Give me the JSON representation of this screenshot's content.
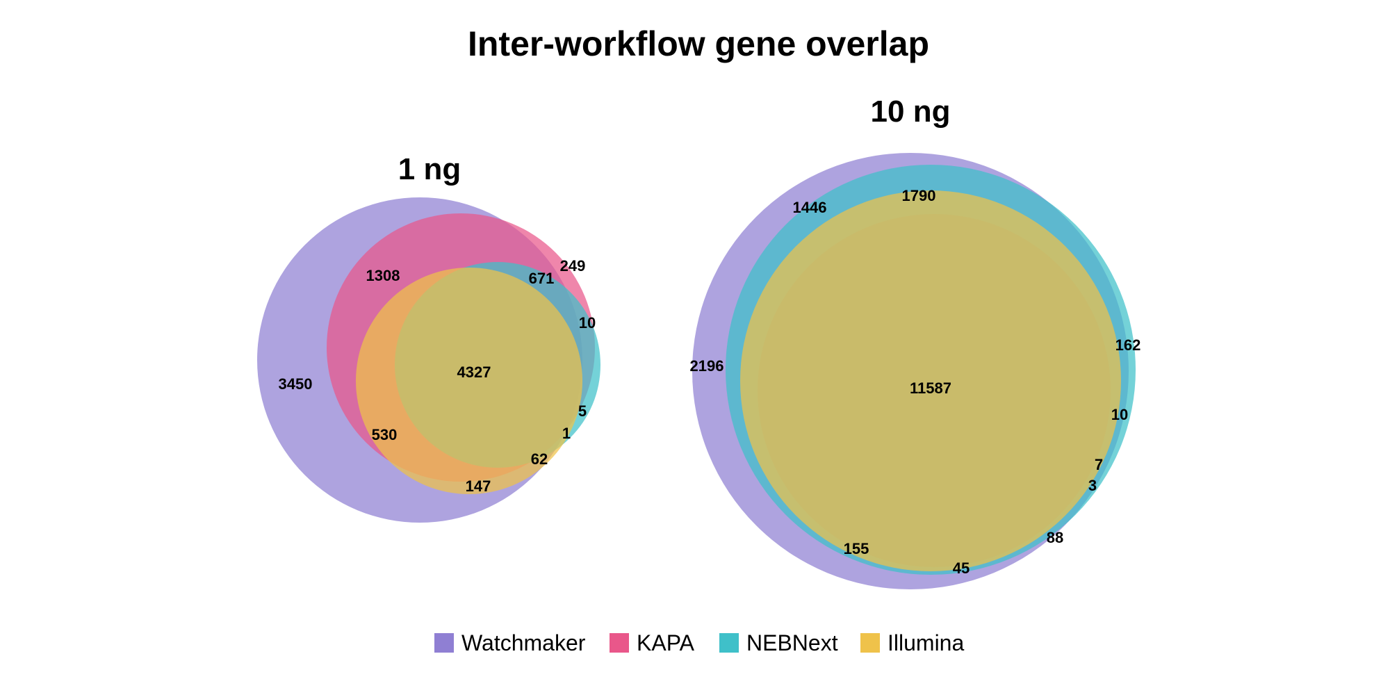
{
  "chart_data": {
    "type": "venn",
    "title": "Inter-workflow gene overlap",
    "sets": [
      {
        "name": "Watchmaker",
        "color": "#8f7fd3"
      },
      {
        "name": "KAPA",
        "color": "#e9578a"
      },
      {
        "name": "NEBNext",
        "color": "#3fc0c9"
      },
      {
        "name": "Illumina",
        "color": "#efc24a"
      }
    ],
    "panels": [
      {
        "subtitle": "1 ng",
        "regions": [
          {
            "label": "3450"
          },
          {
            "label": "1308"
          },
          {
            "label": "249"
          },
          {
            "label": "671"
          },
          {
            "label": "10"
          },
          {
            "label": "4327"
          },
          {
            "label": "530"
          },
          {
            "label": "5"
          },
          {
            "label": "1"
          },
          {
            "label": "62"
          },
          {
            "label": "147"
          }
        ]
      },
      {
        "subtitle": "10 ng",
        "regions": [
          {
            "label": "1446"
          },
          {
            "label": "1790"
          },
          {
            "label": "2196"
          },
          {
            "label": "162"
          },
          {
            "label": "11587"
          },
          {
            "label": "10"
          },
          {
            "label": "7"
          },
          {
            "label": "3"
          },
          {
            "label": "88"
          },
          {
            "label": "155"
          },
          {
            "label": "45"
          }
        ]
      }
    ],
    "legend": {
      "position": "bottom",
      "entries": [
        "Watchmaker",
        "KAPA",
        "NEBNext",
        "Illumina"
      ]
    }
  }
}
